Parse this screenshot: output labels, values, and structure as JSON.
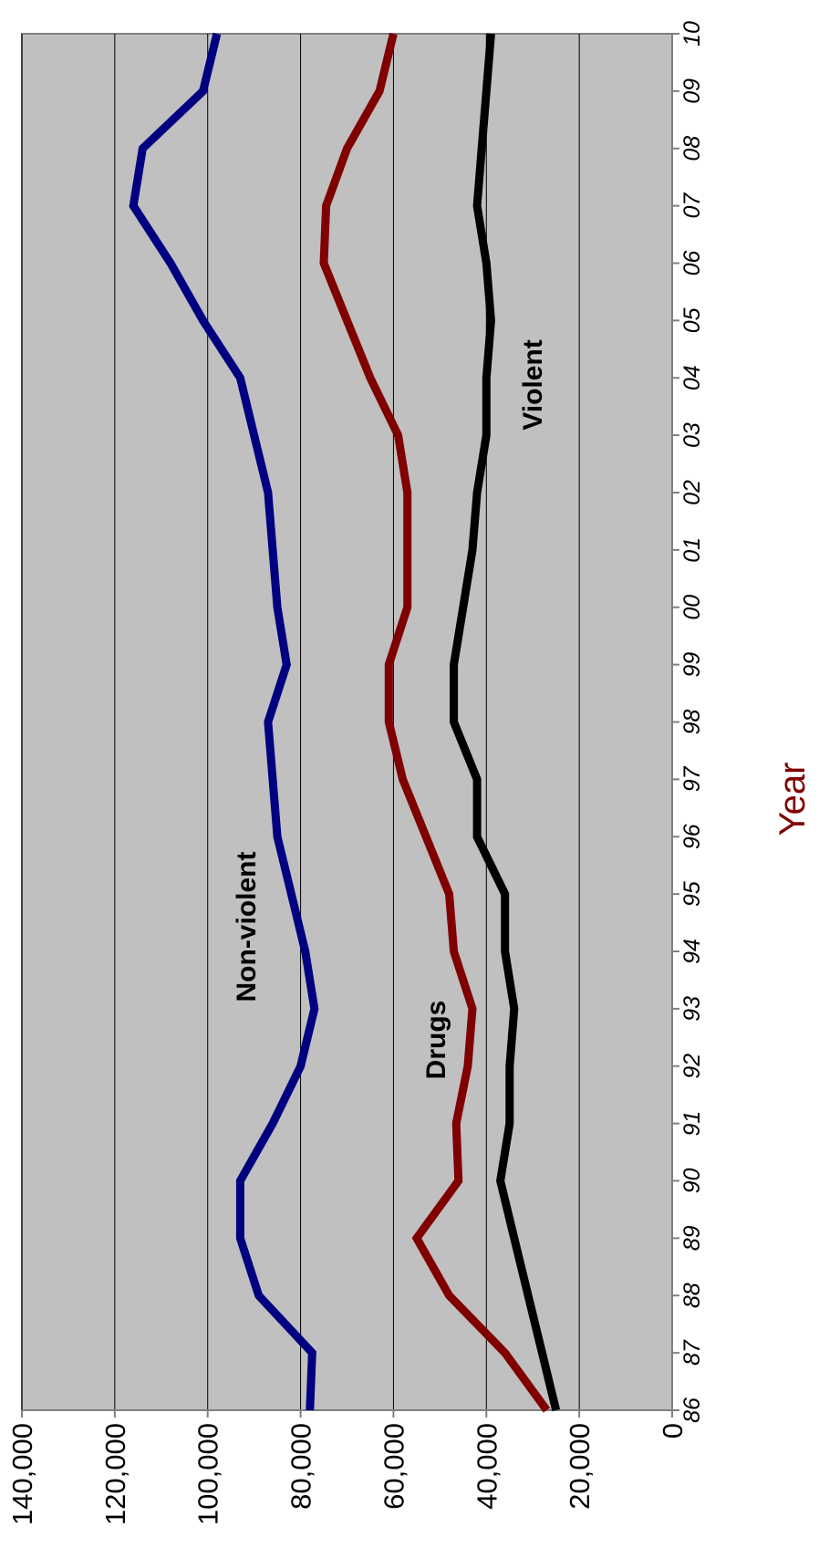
{
  "chart_data": {
    "type": "line",
    "title": "",
    "xlabel": "Year",
    "ylabel": "",
    "x": [
      "86",
      "87",
      "88",
      "89",
      "90",
      "91",
      "92",
      "93",
      "94",
      "95",
      "96",
      "97",
      "98",
      "99",
      "00",
      "01",
      "02",
      "03",
      "04",
      "05",
      "06",
      "07",
      "08",
      "09",
      "10"
    ],
    "ylim": [
      0,
      140000
    ],
    "yticks": [
      0,
      20000,
      40000,
      60000,
      80000,
      100000,
      120000,
      140000
    ],
    "ytick_labels": [
      "0",
      "20,000",
      "40,000",
      "60,000",
      "80,000",
      "100,000",
      "120,000",
      "140,000"
    ],
    "grid": true,
    "orientation": "rotated 90 degrees clockwise",
    "series": [
      {
        "name": "Non-violent",
        "color": "#000080",
        "values": [
          78000,
          77500,
          89000,
          93000,
          93000,
          86000,
          80000,
          77000,
          79000,
          82000,
          85000,
          86000,
          87000,
          83000,
          85000,
          86000,
          87000,
          90000,
          93000,
          101000,
          108000,
          116000,
          114000,
          101000,
          98000
        ]
      },
      {
        "name": "Drugs",
        "color": "#800000",
        "values": [
          27000,
          36000,
          48000,
          55000,
          46000,
          46500,
          44000,
          43000,
          47000,
          48000,
          53000,
          58000,
          61000,
          61000,
          57000,
          57000,
          57000,
          59000,
          65000,
          70000,
          75000,
          74500,
          70000,
          63000,
          60000
        ]
      },
      {
        "name": "Violent",
        "color": "#000000",
        "values": [
          25000,
          28000,
          31000,
          34000,
          37000,
          35000,
          35000,
          34000,
          36000,
          36000,
          42000,
          42000,
          47000,
          47000,
          45000,
          43000,
          42000,
          40000,
          40000,
          39000,
          40000,
          42000,
          41000,
          40000,
          39000
        ]
      }
    ]
  }
}
